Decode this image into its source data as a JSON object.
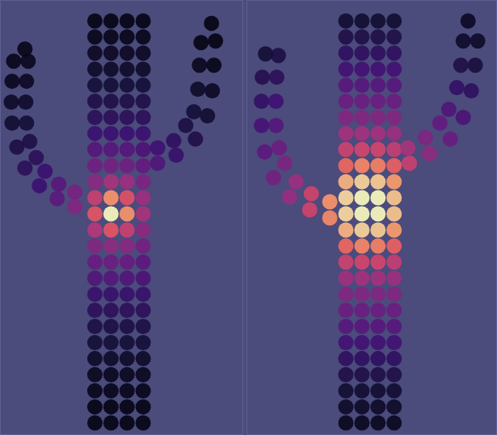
{
  "chart_data": [
    {
      "type": "scatter",
      "xlim": [
        0,
        300
      ],
      "ylim": [
        539,
        0
      ],
      "tick_labels": false,
      "grid": false,
      "color_range": [
        0,
        1
      ],
      "points": [
        [
          117,
          25,
          0.03
        ],
        [
          137,
          25,
          0.03
        ],
        [
          157,
          25,
          0.03
        ],
        [
          177,
          25,
          0.03
        ],
        [
          117,
          45,
          0.04
        ],
        [
          137,
          45,
          0.04
        ],
        [
          157,
          45,
          0.04
        ],
        [
          177,
          45,
          0.04
        ],
        [
          117,
          65,
          0.06
        ],
        [
          137,
          65,
          0.06
        ],
        [
          157,
          65,
          0.06
        ],
        [
          177,
          65,
          0.06
        ],
        [
          117,
          85,
          0.07
        ],
        [
          137,
          85,
          0.07
        ],
        [
          157,
          85,
          0.07
        ],
        [
          177,
          85,
          0.07
        ],
        [
          117,
          105,
          0.1
        ],
        [
          137,
          105,
          0.1
        ],
        [
          157,
          105,
          0.1
        ],
        [
          177,
          105,
          0.1
        ],
        [
          117,
          125,
          0.13
        ],
        [
          137,
          125,
          0.13
        ],
        [
          157,
          125,
          0.13
        ],
        [
          177,
          125,
          0.13
        ],
        [
          117,
          145,
          0.16
        ],
        [
          137,
          145,
          0.16
        ],
        [
          157,
          145,
          0.16
        ],
        [
          177,
          145,
          0.16
        ],
        [
          117,
          165,
          0.2
        ],
        [
          137,
          165,
          0.2
        ],
        [
          157,
          165,
          0.2
        ],
        [
          177,
          165,
          0.2
        ],
        [
          117,
          185,
          0.26
        ],
        [
          137,
          185,
          0.27
        ],
        [
          157,
          185,
          0.26
        ],
        [
          177,
          185,
          0.24
        ],
        [
          117,
          205,
          0.33
        ],
        [
          137,
          205,
          0.34
        ],
        [
          157,
          205,
          0.33
        ],
        [
          177,
          205,
          0.3
        ],
        [
          117,
          225,
          0.4
        ],
        [
          137,
          225,
          0.47
        ],
        [
          157,
          225,
          0.44
        ],
        [
          177,
          225,
          0.36
        ],
        [
          117,
          245,
          0.55
        ],
        [
          137,
          245,
          0.78
        ],
        [
          157,
          245,
          0.62
        ],
        [
          177,
          245,
          0.44
        ],
        [
          117,
          265,
          0.63
        ],
        [
          137,
          265,
          1.0
        ],
        [
          157,
          265,
          0.78
        ],
        [
          177,
          265,
          0.47
        ],
        [
          117,
          285,
          0.5
        ],
        [
          137,
          285,
          0.63
        ],
        [
          157,
          285,
          0.55
        ],
        [
          177,
          285,
          0.4
        ],
        [
          117,
          305,
          0.38
        ],
        [
          137,
          305,
          0.41
        ],
        [
          157,
          305,
          0.39
        ],
        [
          177,
          305,
          0.34
        ],
        [
          117,
          325,
          0.31
        ],
        [
          137,
          325,
          0.32
        ],
        [
          157,
          325,
          0.31
        ],
        [
          177,
          325,
          0.28
        ],
        [
          117,
          345,
          0.25
        ],
        [
          137,
          345,
          0.26
        ],
        [
          157,
          345,
          0.25
        ],
        [
          177,
          345,
          0.24
        ],
        [
          117,
          365,
          0.19
        ],
        [
          137,
          365,
          0.19
        ],
        [
          157,
          365,
          0.19
        ],
        [
          177,
          365,
          0.19
        ],
        [
          117,
          385,
          0.16
        ],
        [
          137,
          385,
          0.16
        ],
        [
          157,
          385,
          0.16
        ],
        [
          177,
          385,
          0.16
        ],
        [
          117,
          405,
          0.12
        ],
        [
          137,
          405,
          0.12
        ],
        [
          157,
          405,
          0.12
        ],
        [
          177,
          405,
          0.12
        ],
        [
          117,
          425,
          0.1
        ],
        [
          137,
          425,
          0.1
        ],
        [
          157,
          425,
          0.1
        ],
        [
          177,
          425,
          0.1
        ],
        [
          117,
          445,
          0.07
        ],
        [
          137,
          445,
          0.07
        ],
        [
          157,
          445,
          0.07
        ],
        [
          177,
          445,
          0.07
        ],
        [
          117,
          465,
          0.05
        ],
        [
          137,
          465,
          0.05
        ],
        [
          157,
          465,
          0.05
        ],
        [
          177,
          465,
          0.05
        ],
        [
          117,
          485,
          0.04
        ],
        [
          137,
          485,
          0.04
        ],
        [
          157,
          485,
          0.04
        ],
        [
          177,
          485,
          0.04
        ],
        [
          117,
          505,
          0.03
        ],
        [
          137,
          505,
          0.03
        ],
        [
          157,
          505,
          0.03
        ],
        [
          177,
          505,
          0.03
        ],
        [
          117,
          525,
          0.03
        ],
        [
          137,
          525,
          0.03
        ],
        [
          157,
          525,
          0.03
        ],
        [
          177,
          525,
          0.03
        ],
        [
          92,
          238,
          0.35
        ],
        [
          92,
          256,
          0.38
        ],
        [
          72,
          228,
          0.27
        ],
        [
          70,
          246,
          0.28
        ],
        [
          55,
          212,
          0.2
        ],
        [
          48,
          230,
          0.2
        ],
        [
          44,
          195,
          0.16
        ],
        [
          30,
          208,
          0.16
        ],
        [
          36,
          175,
          0.13
        ],
        [
          20,
          182,
          0.12
        ],
        [
          32,
          152,
          0.1
        ],
        [
          14,
          152,
          0.09
        ],
        [
          31,
          126,
          0.08
        ],
        [
          13,
          126,
          0.07
        ],
        [
          32,
          100,
          0.06
        ],
        [
          14,
          100,
          0.05
        ],
        [
          34,
          75,
          0.05
        ],
        [
          16,
          75,
          0.04
        ],
        [
          30,
          60,
          0.04
        ],
        [
          195,
          183,
          0.21
        ],
        [
          195,
          202,
          0.25
        ],
        [
          215,
          174,
          0.17
        ],
        [
          218,
          192,
          0.19
        ],
        [
          230,
          155,
          0.12
        ],
        [
          242,
          172,
          0.13
        ],
        [
          240,
          138,
          0.1
        ],
        [
          257,
          143,
          0.09
        ],
        [
          245,
          110,
          0.07
        ],
        [
          263,
          112,
          0.06
        ],
        [
          247,
          80,
          0.05
        ],
        [
          265,
          80,
          0.04
        ],
        [
          249,
          52,
          0.03
        ],
        [
          267,
          50,
          0.03
        ],
        [
          262,
          28,
          0.03
        ]
      ]
    },
    {
      "type": "scatter",
      "xlim": [
        305,
        615
      ],
      "ylim": [
        539,
        0
      ],
      "tick_labels": false,
      "grid": false,
      "color_range": [
        0,
        1
      ],
      "points": [
        [
          428,
          25,
          0.09
        ],
        [
          448,
          25,
          0.09
        ],
        [
          468,
          25,
          0.09
        ],
        [
          488,
          25,
          0.09
        ],
        [
          428,
          45,
          0.13
        ],
        [
          448,
          45,
          0.13
        ],
        [
          468,
          45,
          0.13
        ],
        [
          488,
          45,
          0.13
        ],
        [
          428,
          65,
          0.17
        ],
        [
          448,
          65,
          0.17
        ],
        [
          468,
          65,
          0.17
        ],
        [
          488,
          65,
          0.17
        ],
        [
          428,
          85,
          0.22
        ],
        [
          448,
          85,
          0.22
        ],
        [
          468,
          85,
          0.22
        ],
        [
          488,
          85,
          0.22
        ],
        [
          428,
          105,
          0.27
        ],
        [
          448,
          105,
          0.27
        ],
        [
          468,
          105,
          0.27
        ],
        [
          488,
          105,
          0.27
        ],
        [
          428,
          125,
          0.32
        ],
        [
          448,
          125,
          0.32
        ],
        [
          468,
          125,
          0.32
        ],
        [
          488,
          125,
          0.32
        ],
        [
          428,
          145,
          0.38
        ],
        [
          448,
          145,
          0.38
        ],
        [
          468,
          145,
          0.38
        ],
        [
          488,
          145,
          0.38
        ],
        [
          428,
          165,
          0.46
        ],
        [
          448,
          165,
          0.46
        ],
        [
          468,
          165,
          0.46
        ],
        [
          488,
          165,
          0.44
        ],
        [
          428,
          185,
          0.56
        ],
        [
          448,
          185,
          0.58
        ],
        [
          468,
          185,
          0.58
        ],
        [
          488,
          185,
          0.54
        ],
        [
          428,
          205,
          0.68
        ],
        [
          448,
          205,
          0.75
        ],
        [
          468,
          205,
          0.74
        ],
        [
          488,
          205,
          0.66
        ],
        [
          428,
          225,
          0.85
        ],
        [
          448,
          225,
          0.92
        ],
        [
          468,
          225,
          0.9
        ],
        [
          488,
          225,
          0.8
        ],
        [
          428,
          245,
          0.93
        ],
        [
          448,
          245,
          1.0
        ],
        [
          468,
          245,
          1.0
        ],
        [
          488,
          245,
          0.89
        ],
        [
          428,
          265,
          0.93
        ],
        [
          448,
          265,
          1.0
        ],
        [
          468,
          265,
          1.0
        ],
        [
          488,
          265,
          0.89
        ],
        [
          428,
          285,
          0.85
        ],
        [
          448,
          285,
          0.92
        ],
        [
          468,
          285,
          0.9
        ],
        [
          488,
          285,
          0.8
        ],
        [
          428,
          305,
          0.68
        ],
        [
          448,
          305,
          0.75
        ],
        [
          468,
          305,
          0.74
        ],
        [
          488,
          305,
          0.66
        ],
        [
          428,
          325,
          0.56
        ],
        [
          448,
          325,
          0.58
        ],
        [
          468,
          325,
          0.58
        ],
        [
          488,
          325,
          0.54
        ],
        [
          428,
          345,
          0.45
        ],
        [
          448,
          345,
          0.46
        ],
        [
          468,
          345,
          0.46
        ],
        [
          488,
          345,
          0.44
        ],
        [
          428,
          365,
          0.38
        ],
        [
          448,
          365,
          0.38
        ],
        [
          468,
          365,
          0.38
        ],
        [
          488,
          365,
          0.38
        ],
        [
          428,
          385,
          0.32
        ],
        [
          448,
          385,
          0.32
        ],
        [
          468,
          385,
          0.32
        ],
        [
          488,
          385,
          0.32
        ],
        [
          428,
          405,
          0.27
        ],
        [
          448,
          405,
          0.27
        ],
        [
          468,
          405,
          0.27
        ],
        [
          488,
          405,
          0.27
        ],
        [
          428,
          425,
          0.22
        ],
        [
          448,
          425,
          0.22
        ],
        [
          468,
          425,
          0.22
        ],
        [
          488,
          425,
          0.22
        ],
        [
          428,
          445,
          0.17
        ],
        [
          448,
          445,
          0.17
        ],
        [
          468,
          445,
          0.17
        ],
        [
          488,
          445,
          0.17
        ],
        [
          428,
          465,
          0.13
        ],
        [
          448,
          465,
          0.13
        ],
        [
          468,
          465,
          0.13
        ],
        [
          488,
          465,
          0.13
        ],
        [
          428,
          485,
          0.09
        ],
        [
          448,
          485,
          0.09
        ],
        [
          468,
          485,
          0.09
        ],
        [
          488,
          485,
          0.09
        ],
        [
          428,
          505,
          0.07
        ],
        [
          448,
          505,
          0.07
        ],
        [
          468,
          505,
          0.07
        ],
        [
          488,
          505,
          0.07
        ],
        [
          428,
          525,
          0.05
        ],
        [
          448,
          525,
          0.05
        ],
        [
          468,
          525,
          0.05
        ],
        [
          488,
          525,
          0.05
        ],
        [
          408,
          250,
          0.78
        ],
        [
          408,
          270,
          0.76
        ],
        [
          385,
          240,
          0.57
        ],
        [
          383,
          260,
          0.57
        ],
        [
          366,
          225,
          0.44
        ],
        [
          358,
          244,
          0.43
        ],
        [
          352,
          202,
          0.36
        ],
        [
          338,
          220,
          0.34
        ],
        [
          345,
          183,
          0.32
        ],
        [
          327,
          188,
          0.28
        ],
        [
          341,
          155,
          0.26
        ],
        [
          323,
          155,
          0.23
        ],
        [
          341,
          125,
          0.21
        ],
        [
          323,
          125,
          0.18
        ],
        [
          342,
          95,
          0.16
        ],
        [
          324,
          95,
          0.14
        ],
        [
          344,
          68,
          0.12
        ],
        [
          328,
          66,
          0.1
        ],
        [
          505,
          183,
          0.47
        ],
        [
          507,
          202,
          0.55
        ],
        [
          527,
          170,
          0.37
        ],
        [
          532,
          190,
          0.41
        ],
        [
          545,
          152,
          0.3
        ],
        [
          558,
          172,
          0.31
        ],
        [
          556,
          135,
          0.25
        ],
        [
          574,
          145,
          0.24
        ],
        [
          566,
          108,
          0.18
        ],
        [
          584,
          112,
          0.17
        ],
        [
          571,
          80,
          0.13
        ],
        [
          589,
          80,
          0.11
        ],
        [
          574,
          50,
          0.08
        ],
        [
          592,
          50,
          0.07
        ],
        [
          580,
          25,
          0.06
        ]
      ]
    }
  ]
}
